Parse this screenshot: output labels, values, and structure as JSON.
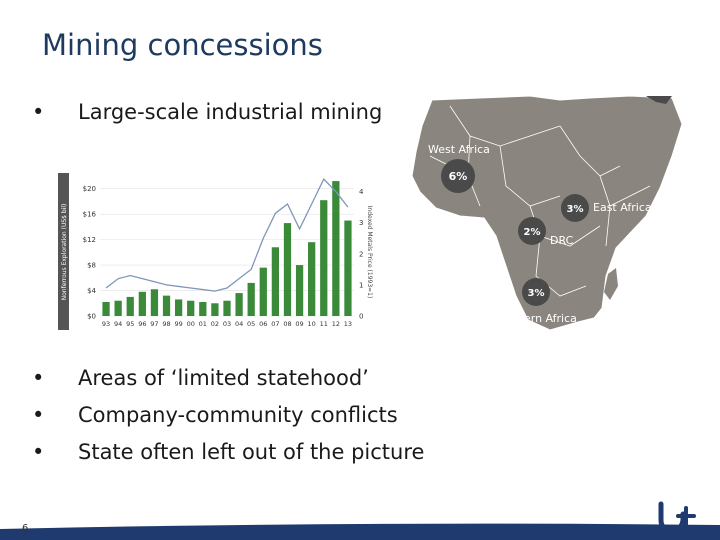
{
  "slide": {
    "title": "Mining concessions",
    "bullet1": "Large-scale industrial mining",
    "bullets": [
      "Areas of ‘limited statehood’",
      "Company-community conflicts",
      "State often left out of the picture"
    ],
    "bullet_char": "•",
    "page_number": "6"
  },
  "map": {
    "labels": [
      {
        "region": "West Africa",
        "pct": "6%"
      },
      {
        "region": "East Africa",
        "pct": "3%"
      },
      {
        "region": "DRC",
        "pct": "2%"
      },
      {
        "region": "Southern Africa",
        "pct": "3%"
      }
    ],
    "land_color": "#8a857e",
    "bubble_color": "#4a4a4a"
  },
  "chart_data": {
    "type": "bar",
    "categories": [
      "93",
      "94",
      "95",
      "96",
      "97",
      "98",
      "99",
      "00",
      "01",
      "02",
      "03",
      "04",
      "05",
      "06",
      "07",
      "08",
      "09",
      "10",
      "11",
      "12",
      "13"
    ],
    "series": [
      {
        "kind": "bar",
        "values": [
          2.2,
          2.4,
          3.0,
          3.8,
          4.2,
          3.2,
          2.6,
          2.4,
          2.2,
          2.0,
          2.4,
          3.6,
          5.2,
          7.6,
          10.8,
          14.6,
          8.0,
          11.6,
          18.2,
          21.2,
          15.0
        ]
      },
      {
        "kind": "line",
        "values": [
          0.9,
          1.2,
          1.3,
          1.2,
          1.1,
          1.0,
          0.95,
          0.9,
          0.85,
          0.8,
          0.9,
          1.2,
          1.5,
          2.5,
          3.3,
          3.6,
          2.8,
          3.6,
          4.4,
          4.0,
          3.5
        ]
      }
    ],
    "ylabel": "Nonferrous Exploration (US$ bil)",
    "y2label": "Indexed Metals Price (1993=1)",
    "y_ticks": [
      "$0",
      "$4",
      "$8",
      "$12",
      "$16",
      "$20"
    ],
    "y2_ticks": [
      "0",
      "1",
      "2",
      "3",
      "4"
    ],
    "ylim": [
      0,
      22
    ],
    "y2lim": [
      0,
      4.5
    ],
    "bar_color": "#3a8a3a",
    "line_color": "#7e96b8",
    "grid": true
  },
  "colors": {
    "title": "#1f3a5f",
    "footer": "#1e3a6e",
    "logo": "#1e3a6e"
  },
  "logo_icon": "university-logo-icon"
}
